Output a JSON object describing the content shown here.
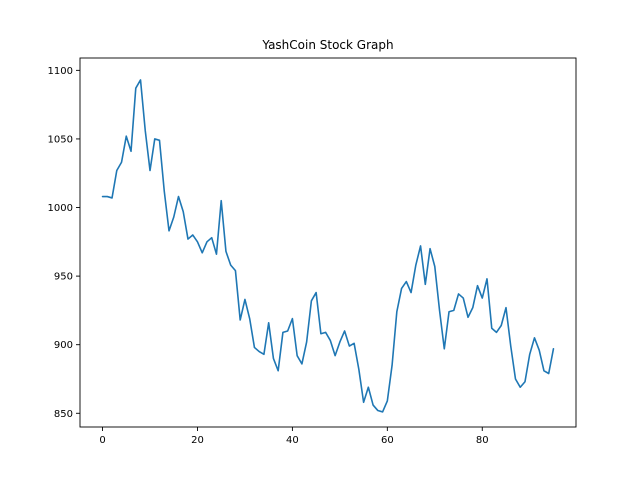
{
  "chart_data": {
    "type": "line",
    "title": "YashCoin Stock Graph",
    "xlabel": "",
    "ylabel": "",
    "xlim": [
      -4.75,
      99.75
    ],
    "ylim": [
      840,
      1109
    ],
    "xticks": [
      0,
      20,
      40,
      60,
      80
    ],
    "yticks": [
      850,
      900,
      950,
      1000,
      1050,
      1100
    ],
    "grid": false,
    "legend": "none",
    "series": [
      {
        "color": "#1f77b4",
        "x": [
          0,
          1,
          2,
          3,
          4,
          5,
          6,
          7,
          8,
          9,
          10,
          11,
          12,
          13,
          14,
          15,
          16,
          17,
          18,
          19,
          20,
          21,
          22,
          23,
          24,
          25,
          26,
          27,
          28,
          29,
          30,
          31,
          32,
          33,
          34,
          35,
          36,
          37,
          38,
          39,
          40,
          41,
          42,
          43,
          44,
          45,
          46,
          47,
          48,
          49,
          50,
          51,
          52,
          53,
          54,
          55,
          56,
          57,
          58,
          59,
          60,
          61,
          62,
          63,
          64,
          65,
          66,
          67,
          68,
          69,
          70,
          71,
          72,
          73,
          74,
          75,
          76,
          77,
          78,
          79,
          80,
          81,
          82,
          83,
          84,
          85,
          86,
          87,
          88,
          89,
          90,
          91,
          92,
          93,
          94,
          95
        ],
        "values": [
          1008,
          1008,
          1007,
          1027,
          1033,
          1052,
          1041,
          1087,
          1093,
          1056,
          1027,
          1050,
          1049,
          1012,
          983,
          993,
          1008,
          997,
          977,
          980,
          975,
          967,
          975,
          978,
          966,
          1005,
          968,
          958,
          954,
          918,
          933,
          919,
          898,
          895,
          893,
          916,
          890,
          881,
          909,
          910,
          919,
          892,
          886,
          902,
          932,
          938,
          908,
          909,
          903,
          892,
          902,
          910,
          899,
          901,
          882,
          858,
          869,
          856,
          852,
          851,
          859,
          885,
          924,
          941,
          946,
          938,
          958,
          972,
          944,
          970,
          957,
          925,
          897,
          924,
          925,
          937,
          934,
          920,
          927,
          943,
          934,
          948,
          912,
          909,
          914,
          927,
          899,
          875,
          869,
          873,
          893,
          905,
          896,
          881,
          879,
          897
        ]
      }
    ]
  }
}
